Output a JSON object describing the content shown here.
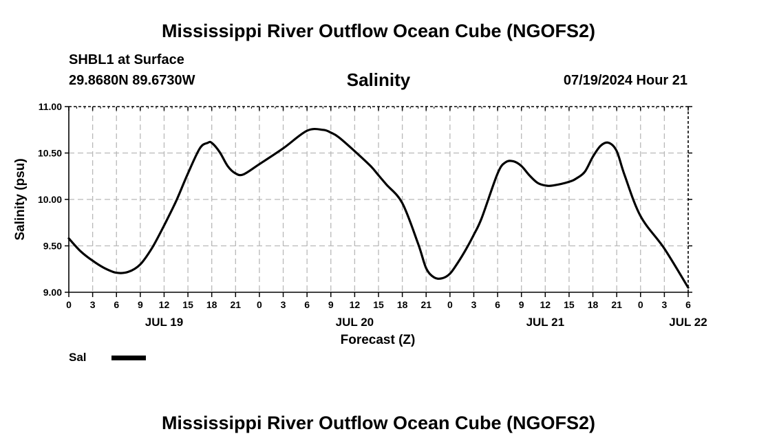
{
  "header": {
    "title": "Mississippi River Outflow Ocean Cube (NGOFS2)",
    "station": "SHBL1 at Surface",
    "coords": "29.8680N  89.6730W",
    "parameter": "Salinity",
    "datetime": "07/19/2024 Hour 21"
  },
  "footer": {
    "title": "Mississippi River Outflow Ocean Cube (NGOFS2)"
  },
  "legend": {
    "label": "Sal",
    "color": "#000000"
  },
  "chart_data": {
    "type": "line",
    "title": "Salinity",
    "xlabel": "Forecast (Z)",
    "ylabel": "Salinity (psu)",
    "xlim": [
      0,
      78
    ],
    "ylim": [
      9.0,
      11.0
    ],
    "grid": true,
    "x_ticks": [
      0,
      3,
      6,
      9,
      12,
      15,
      18,
      21,
      24,
      27,
      30,
      33,
      36,
      39,
      42,
      45,
      48,
      51,
      54,
      57,
      60,
      63,
      66,
      69,
      72,
      75,
      78
    ],
    "x_tick_labels": [
      "0",
      "3",
      "6",
      "9",
      "12",
      "15",
      "18",
      "21",
      "0",
      "3",
      "6",
      "9",
      "12",
      "15",
      "18",
      "21",
      "0",
      "3",
      "6",
      "9",
      "12",
      "15",
      "18",
      "21",
      "0",
      "3",
      "6"
    ],
    "y_ticks": [
      9.0,
      9.5,
      10.0,
      10.5,
      11.0
    ],
    "y_tick_labels": [
      "9.00",
      "9.50",
      "10.00",
      "10.50",
      "11.00"
    ],
    "date_labels": [
      {
        "x": 12,
        "label": "JUL 19"
      },
      {
        "x": 36,
        "label": "JUL 20"
      },
      {
        "x": 60,
        "label": "JUL 21"
      },
      {
        "x": 78,
        "label": "JUL 22"
      }
    ],
    "series": [
      {
        "name": "Sal",
        "x": [
          0,
          1.5,
          3,
          4.5,
          6,
          7.5,
          9,
          10.5,
          12,
          13.5,
          15,
          16.5,
          17.5,
          18,
          19,
          20,
          21,
          22,
          24,
          27,
          30,
          32,
          33,
          34,
          36,
          38,
          39,
          40,
          42,
          44,
          45,
          46,
          47,
          48,
          49,
          50,
          51,
          52,
          54,
          55,
          56,
          57,
          58,
          59,
          60,
          61,
          63,
          64,
          65,
          66,
          67,
          68,
          69,
          70,
          72,
          75,
          78
        ],
        "values": [
          9.58,
          9.44,
          9.34,
          9.26,
          9.21,
          9.22,
          9.3,
          9.48,
          9.72,
          9.98,
          10.28,
          10.55,
          10.61,
          10.61,
          10.51,
          10.36,
          10.28,
          10.27,
          10.38,
          10.55,
          10.74,
          10.75,
          10.72,
          10.67,
          10.52,
          10.36,
          10.26,
          10.16,
          9.96,
          9.52,
          9.26,
          9.16,
          9.15,
          9.2,
          9.32,
          9.46,
          9.62,
          9.8,
          10.28,
          10.4,
          10.41,
          10.36,
          10.26,
          10.18,
          10.15,
          10.15,
          10.19,
          10.23,
          10.3,
          10.46,
          10.58,
          10.61,
          10.52,
          10.26,
          9.82,
          9.47,
          9.05
        ]
      }
    ]
  }
}
